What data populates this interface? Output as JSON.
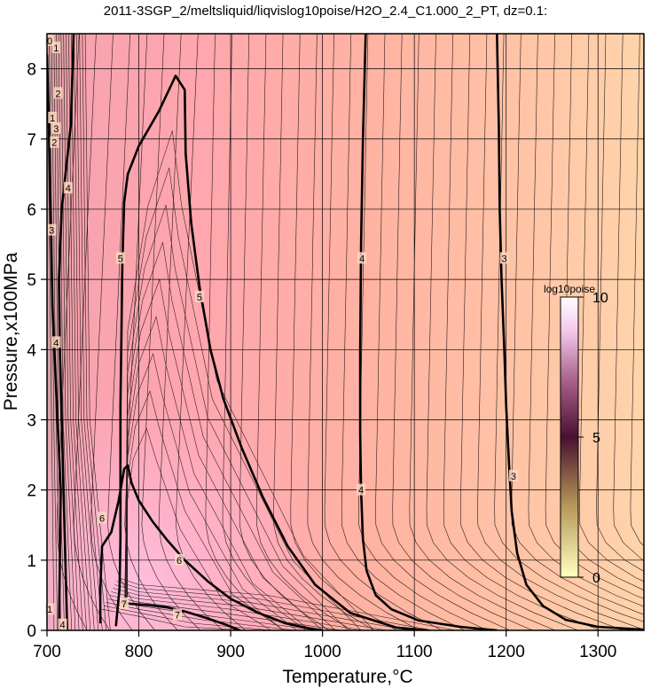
{
  "chart_data": {
    "type": "contour",
    "title": "2011-3SGP_2/meltsliquid/liqvislog10poise/H2O_2.4_C1.000_2_PT, dz=0.1:",
    "xlabel": "Temperature,°C",
    "ylabel": "Pressure,x100MPa",
    "xlim": [
      700,
      1350
    ],
    "ylim": [
      0,
      8.5
    ],
    "x_ticks": [
      "700",
      "800",
      "900",
      "1000",
      "1100",
      "1200",
      "1300"
    ],
    "y_ticks": [
      "0",
      "1",
      "2",
      "3",
      "4",
      "5",
      "6",
      "7",
      "8"
    ],
    "grid": true,
    "colorbar": {
      "title": "log10poise",
      "ticks": [
        "0",
        "5",
        "10"
      ],
      "range": [
        0,
        10
      ],
      "stops": [
        "#ffffc0",
        "#9c7a3a",
        "#4a1030",
        "#b07090",
        "#fbe2f8",
        "#ffffff"
      ]
    },
    "contour_interval": 0.1,
    "major_contours": [
      {
        "label": "3",
        "value": 3,
        "points": [
          [
            1190,
            8.5
          ],
          [
            1192,
            7.2
          ],
          [
            1193,
            6.0
          ],
          [
            1195,
            5.0
          ],
          [
            1198,
            4.0
          ],
          [
            1200,
            3.2
          ],
          [
            1203,
            2.4
          ],
          [
            1206,
            1.7
          ],
          [
            1212,
            1.1
          ],
          [
            1222,
            0.65
          ],
          [
            1240,
            0.35
          ],
          [
            1265,
            0.15
          ],
          [
            1300,
            0.05
          ],
          [
            1350,
            0.01
          ]
        ]
      },
      {
        "label": "4",
        "value": 4,
        "points": [
          [
            1047,
            8.5
          ],
          [
            1044,
            7.0
          ],
          [
            1042,
            5.5
          ],
          [
            1041,
            4.0
          ],
          [
            1041,
            2.8
          ],
          [
            1042,
            2.0
          ],
          [
            1044,
            1.3
          ],
          [
            1048,
            0.85
          ],
          [
            1058,
            0.5
          ],
          [
            1075,
            0.3
          ],
          [
            1105,
            0.14
          ],
          [
            1150,
            0.05
          ],
          [
            1190,
            0.0
          ]
        ]
      },
      {
        "label": "5",
        "value": 5,
        "points": [
          [
            775,
            0.06
          ],
          [
            779,
            0.6
          ],
          [
            780,
            1.3
          ],
          [
            780,
            2.2
          ],
          [
            780,
            3.2
          ],
          [
            781,
            4.2
          ],
          [
            782,
            5.2
          ],
          [
            784,
            6.1
          ],
          [
            788,
            6.5
          ],
          [
            800,
            6.9
          ],
          [
            822,
            7.4
          ],
          [
            840,
            7.9
          ],
          [
            850,
            7.7
          ],
          [
            851,
            6.8
          ],
          [
            857,
            5.8
          ],
          [
            866,
            4.9
          ],
          [
            878,
            4.0
          ],
          [
            892,
            3.3
          ],
          [
            912,
            2.6
          ],
          [
            935,
            1.9
          ],
          [
            962,
            1.2
          ],
          [
            992,
            0.65
          ],
          [
            1030,
            0.25
          ],
          [
            1080,
            0.04
          ],
          [
            1115,
            0.0
          ]
        ]
      },
      {
        "label": "6",
        "value": 6,
        "points": [
          [
            758,
            0.1
          ],
          [
            758,
            0.6
          ],
          [
            760,
            1.2
          ],
          [
            770,
            1.4
          ],
          [
            778,
            1.85
          ],
          [
            784,
            2.3
          ],
          [
            788,
            2.35
          ],
          [
            792,
            2.1
          ],
          [
            800,
            1.85
          ],
          [
            815,
            1.55
          ],
          [
            830,
            1.3
          ],
          [
            850,
            1.0
          ],
          [
            875,
            0.7
          ],
          [
            900,
            0.45
          ],
          [
            930,
            0.25
          ],
          [
            960,
            0.1
          ],
          [
            985,
            0.03
          ],
          [
            1000,
            0.0
          ]
        ]
      },
      {
        "label": "7",
        "value": 7,
        "points": [
          [
            780,
            0.4
          ],
          [
            790,
            0.38
          ],
          [
            810,
            0.36
          ],
          [
            830,
            0.33
          ],
          [
            850,
            0.27
          ],
          [
            875,
            0.17
          ],
          [
            895,
            0.08
          ],
          [
            910,
            0.0
          ]
        ]
      },
      {
        "label": "3",
        "value": 3,
        "points": [
          [
            713,
            0.0
          ],
          [
            714,
            1.0
          ],
          [
            715,
            2.0
          ],
          [
            710,
            3.4
          ],
          [
            706,
            4.6
          ],
          [
            704,
            6.0
          ],
          [
            702,
            7.2
          ],
          [
            700,
            8.2
          ]
        ]
      },
      {
        "label": "4",
        "value": 4,
        "points": [
          [
            722,
            0.0
          ],
          [
            720,
            1.0
          ],
          [
            718,
            2.0
          ],
          [
            716,
            3.0
          ],
          [
            714,
            4.0
          ],
          [
            713,
            5.0
          ],
          [
            716,
            6.0
          ],
          [
            721,
            6.6
          ],
          [
            726,
            7.2
          ],
          [
            729,
            8.5
          ]
        ]
      }
    ],
    "contour_labels": [
      {
        "text": "3",
        "x": 1198,
        "y": 5.3
      },
      {
        "text": "3",
        "x": 1208,
        "y": 2.2
      },
      {
        "text": "4",
        "x": 1043,
        "y": 5.3
      },
      {
        "text": "4",
        "x": 1042,
        "y": 2.0
      },
      {
        "text": "5",
        "x": 780,
        "y": 5.3
      },
      {
        "text": "5",
        "x": 866,
        "y": 4.75
      },
      {
        "text": "6",
        "x": 760,
        "y": 1.6
      },
      {
        "text": "6",
        "x": 844,
        "y": 1.0
      },
      {
        "text": "7",
        "x": 784,
        "y": 0.38
      },
      {
        "text": "7",
        "x": 842,
        "y": 0.22
      },
      {
        "text": "4",
        "x": 723,
        "y": 6.3
      },
      {
        "text": "4",
        "x": 710,
        "y": 4.1
      },
      {
        "text": "3",
        "x": 705,
        "y": 5.7
      },
      {
        "text": "3",
        "x": 710,
        "y": 7.15
      },
      {
        "text": "2",
        "x": 708,
        "y": 6.95
      },
      {
        "text": "2",
        "x": 712,
        "y": 7.65
      },
      {
        "text": "1",
        "x": 710,
        "y": 8.3
      },
      {
        "text": "1",
        "x": 706,
        "y": 7.3
      },
      {
        "text": "0",
        "x": 703,
        "y": 8.4
      },
      {
        "text": "1",
        "x": 703,
        "y": 0.3
      },
      {
        "text": "4",
        "x": 717,
        "y": 0.08
      }
    ],
    "colors": {
      "left_band": "#c89aa0",
      "pink_region": "#ffa5b0",
      "mid_region": "#ffae9e",
      "right_region": "#ffcfa8",
      "lowT_pink": "#ffb9dc"
    }
  }
}
